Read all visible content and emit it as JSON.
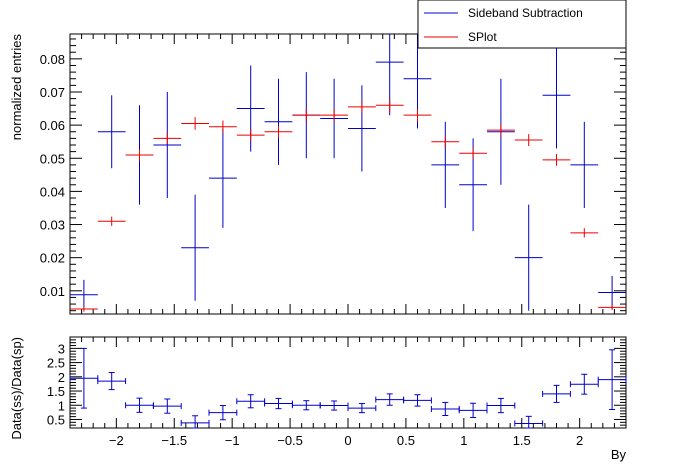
{
  "chart_data": [
    {
      "type": "scatter",
      "panel": "main",
      "xlabel": "",
      "ylabel": "normalized entries",
      "xlim": [
        -2.4,
        2.4
      ],
      "ylim": [
        0.003,
        0.0875
      ],
      "y_ticks": [
        0.01,
        0.02,
        0.03,
        0.04,
        0.05,
        0.06,
        0.07,
        0.08
      ],
      "y_tick_labels": [
        "0.01",
        "0.02",
        "0.03",
        "0.04",
        "0.05",
        "0.06",
        "0.07",
        "0.08"
      ],
      "bin_width": 0.24,
      "legend": {
        "placement": "top-right",
        "entries": [
          "Sideband Subtraction",
          "SPlot"
        ]
      },
      "series": [
        {
          "name": "Sideband Subtraction",
          "color": "#0000cc",
          "x": [
            -2.28,
            -2.04,
            -1.8,
            -1.56,
            -1.32,
            -1.08,
            -0.84,
            -0.6,
            -0.36,
            -0.12,
            0.12,
            0.36,
            0.6,
            0.84,
            1.08,
            1.32,
            1.56,
            1.8,
            2.04,
            2.28
          ],
          "y": [
            0.0088,
            0.058,
            0.051,
            0.054,
            0.023,
            0.044,
            0.065,
            0.061,
            0.063,
            0.062,
            0.059,
            0.079,
            0.074,
            0.048,
            0.042,
            0.058,
            0.02,
            0.069,
            0.048,
            0.0095
          ],
          "yerr": [
            0.0045,
            0.011,
            0.015,
            0.016,
            0.016,
            0.015,
            0.013,
            0.013,
            0.013,
            0.012,
            0.013,
            0.016,
            0.015,
            0.013,
            0.014,
            0.016,
            0.016,
            0.016,
            0.013,
            0.005
          ]
        },
        {
          "name": "SPlot",
          "color": "#ee0000",
          "x": [
            -2.28,
            -2.04,
            -1.8,
            -1.56,
            -1.32,
            -1.08,
            -0.84,
            -0.6,
            -0.36,
            -0.12,
            0.12,
            0.36,
            0.6,
            0.84,
            1.08,
            1.32,
            1.56,
            1.8,
            2.04,
            2.28
          ],
          "y": [
            0.0045,
            0.031,
            0.051,
            0.056,
            0.0605,
            0.0595,
            0.057,
            0.058,
            0.063,
            0.063,
            0.0655,
            0.066,
            0.063,
            0.055,
            0.0515,
            0.0585,
            0.0555,
            0.0495,
            0.0275,
            0.005
          ],
          "yerr": [
            0.0008,
            0.0014,
            0.0018,
            0.0018,
            0.0019,
            0.0019,
            0.0018,
            0.0018,
            0.0019,
            0.0019,
            0.0019,
            0.0019,
            0.0019,
            0.0018,
            0.0018,
            0.0019,
            0.0018,
            0.0018,
            0.0014,
            0.0008
          ]
        }
      ]
    },
    {
      "type": "scatter",
      "panel": "ratio",
      "xlabel": "By",
      "ylabel": "Data(ss)/Data(sp)",
      "xlim": [
        -2.4,
        2.4
      ],
      "ylim": [
        0.2,
        3.4
      ],
      "x_ticks": [
        -2,
        -1.5,
        -1,
        -0.5,
        0,
        0.5,
        1,
        1.5,
        2
      ],
      "x_tick_labels": [
        "−2",
        "−1.5",
        "−1",
        "−0.5",
        "0",
        "0.5",
        "1",
        "1.5",
        "2"
      ],
      "y_ticks": [
        0.5,
        1,
        1.5,
        2,
        2.5,
        3
      ],
      "y_tick_labels": [
        "0.5",
        "1",
        "1.5",
        "2",
        "2.5",
        "3"
      ],
      "bin_width": 0.24,
      "series": [
        {
          "color": "#0000cc",
          "x": [
            -2.28,
            -2.04,
            -1.8,
            -1.56,
            -1.32,
            -1.08,
            -0.84,
            -0.6,
            -0.36,
            -0.12,
            0.12,
            0.36,
            0.6,
            0.84,
            1.08,
            1.32,
            1.56,
            1.8,
            2.04,
            2.28
          ],
          "y": [
            1.95,
            1.85,
            1.0,
            0.97,
            0.38,
            0.74,
            1.14,
            1.06,
            1.0,
            0.99,
            0.9,
            1.2,
            1.17,
            0.87,
            0.82,
            0.99,
            0.36,
            1.4,
            1.74,
            1.9
          ],
          "yerr": [
            1.05,
            0.3,
            0.25,
            0.25,
            0.25,
            0.25,
            0.23,
            0.18,
            0.16,
            0.16,
            0.16,
            0.2,
            0.2,
            0.23,
            0.25,
            0.25,
            0.25,
            0.3,
            0.35,
            1.05
          ]
        }
      ]
    }
  ]
}
